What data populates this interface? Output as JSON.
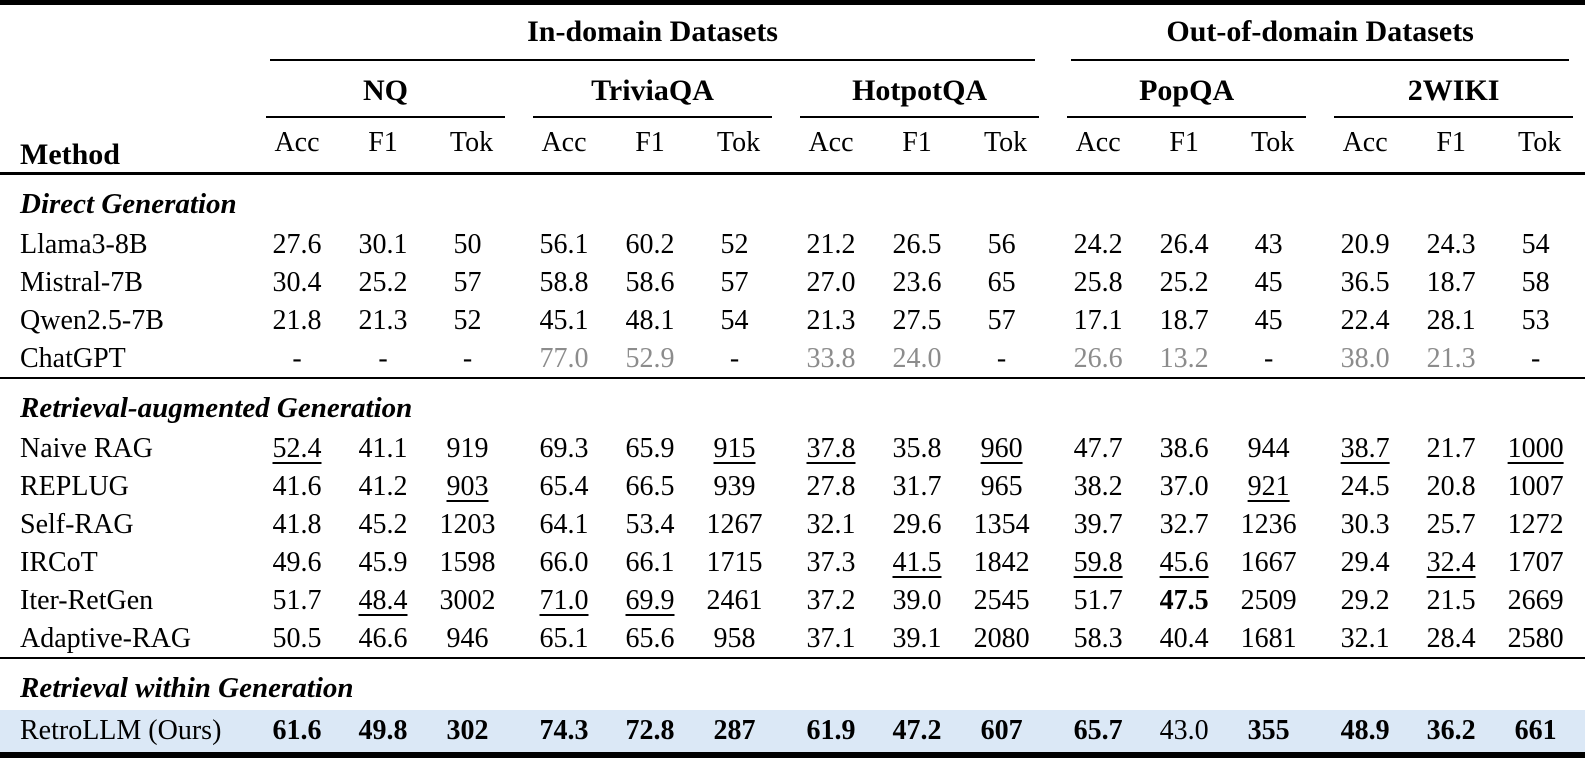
{
  "colors": {
    "background": "#ffffff",
    "text": "#000000",
    "muted_text": "#8c8c8c",
    "highlight_row": "#dbe8f6",
    "rule": "#000000"
  },
  "table": {
    "method_header": "Method",
    "group_headers": [
      "In-domain Datasets",
      "Out-of-domain Datasets"
    ],
    "datasets": [
      "NQ",
      "TriviaQA",
      "HotpotQA",
      "PopQA",
      "2WIKI"
    ],
    "metrics": [
      "Acc",
      "F1",
      "Tok"
    ],
    "sections": [
      {
        "title": "Direct Generation",
        "rows": [
          {
            "method": "Llama3-8B",
            "cells": [
              "27.6",
              "30.1",
              "50",
              "56.1",
              "60.2",
              "52",
              "21.2",
              "26.5",
              "56",
              "24.2",
              "26.4",
              "43",
              "20.9",
              "24.3",
              "54"
            ]
          },
          {
            "method": "Mistral-7B",
            "cells": [
              "30.4",
              "25.2",
              "57",
              "58.8",
              "58.6",
              "57",
              "27.0",
              "23.6",
              "65",
              "25.8",
              "25.2",
              "45",
              "36.5",
              "18.7",
              "58"
            ]
          },
          {
            "method": "Qwen2.5-7B",
            "cells": [
              "21.8",
              "21.3",
              "52",
              "45.1",
              "48.1",
              "54",
              "21.3",
              "27.5",
              "57",
              "17.1",
              "18.7",
              "45",
              "22.4",
              "28.1",
              "53"
            ]
          },
          {
            "method": "ChatGPT",
            "cells": [
              "-",
              "-",
              "-",
              {
                "t": "77.0",
                "g": 1
              },
              {
                "t": "52.9",
                "g": 1
              },
              "-",
              {
                "t": "33.8",
                "g": 1
              },
              {
                "t": "24.0",
                "g": 1
              },
              "-",
              {
                "t": "26.6",
                "g": 1
              },
              {
                "t": "13.2",
                "g": 1
              },
              "-",
              {
                "t": "38.0",
                "g": 1
              },
              {
                "t": "21.3",
                "g": 1
              },
              "-"
            ]
          }
        ]
      },
      {
        "title": "Retrieval-augmented Generation",
        "rows": [
          {
            "method": "Naive RAG",
            "cells": [
              {
                "t": "52.4",
                "u": 1
              },
              "41.1",
              "919",
              "69.3",
              "65.9",
              {
                "t": "915",
                "u": 1
              },
              {
                "t": "37.8",
                "u": 1
              },
              "35.8",
              {
                "t": "960",
                "u": 1
              },
              "47.7",
              "38.6",
              "944",
              {
                "t": "38.7",
                "u": 1
              },
              "21.7",
              {
                "t": "1000",
                "u": 1
              }
            ]
          },
          {
            "method": "REPLUG",
            "cells": [
              "41.6",
              "41.2",
              {
                "t": "903",
                "u": 1
              },
              "65.4",
              "66.5",
              "939",
              "27.8",
              "31.7",
              "965",
              "38.2",
              "37.0",
              {
                "t": "921",
                "u": 1
              },
              "24.5",
              "20.8",
              "1007"
            ]
          },
          {
            "method": "Self-RAG",
            "cells": [
              "41.8",
              "45.2",
              "1203",
              "64.1",
              "53.4",
              "1267",
              "32.1",
              "29.6",
              "1354",
              "39.7",
              "32.7",
              "1236",
              "30.3",
              "25.7",
              "1272"
            ]
          },
          {
            "method": "IRCoT",
            "cells": [
              "49.6",
              "45.9",
              "1598",
              "66.0",
              "66.1",
              "1715",
              "37.3",
              {
                "t": "41.5",
                "u": 1
              },
              "1842",
              {
                "t": "59.8",
                "u": 1
              },
              {
                "t": "45.6",
                "u": 1
              },
              "1667",
              "29.4",
              {
                "t": "32.4",
                "u": 1
              },
              "1707"
            ]
          },
          {
            "method": "Iter-RetGen",
            "cells": [
              "51.7",
              {
                "t": "48.4",
                "u": 1
              },
              "3002",
              {
                "t": "71.0",
                "u": 1
              },
              {
                "t": "69.9",
                "u": 1
              },
              "2461",
              "37.2",
              "39.0",
              "2545",
              "51.7",
              {
                "t": "47.5",
                "b": 1
              },
              "2509",
              "29.2",
              "21.5",
              "2669"
            ]
          },
          {
            "method": "Adaptive-RAG",
            "cells": [
              "50.5",
              "46.6",
              "946",
              "65.1",
              "65.6",
              "958",
              "37.1",
              "39.1",
              "2080",
              "58.3",
              "40.4",
              "1681",
              "32.1",
              "28.4",
              "2580"
            ]
          }
        ]
      },
      {
        "title": "Retrieval within Generation",
        "rows": [
          {
            "method": "RetroLLM (Ours)",
            "highlight": true,
            "cells": [
              {
                "t": "61.6",
                "b": 1
              },
              {
                "t": "49.8",
                "b": 1
              },
              {
                "t": "302",
                "b": 1
              },
              {
                "t": "74.3",
                "b": 1
              },
              {
                "t": "72.8",
                "b": 1
              },
              {
                "t": "287",
                "b": 1
              },
              {
                "t": "61.9",
                "b": 1
              },
              {
                "t": "47.2",
                "b": 1
              },
              {
                "t": "607",
                "b": 1
              },
              {
                "t": "65.7",
                "b": 1
              },
              "43.0",
              {
                "t": "355",
                "b": 1
              },
              {
                "t": "48.9",
                "b": 1
              },
              {
                "t": "36.2",
                "b": 1
              },
              {
                "t": "661",
                "b": 1
              }
            ]
          }
        ]
      }
    ]
  }
}
